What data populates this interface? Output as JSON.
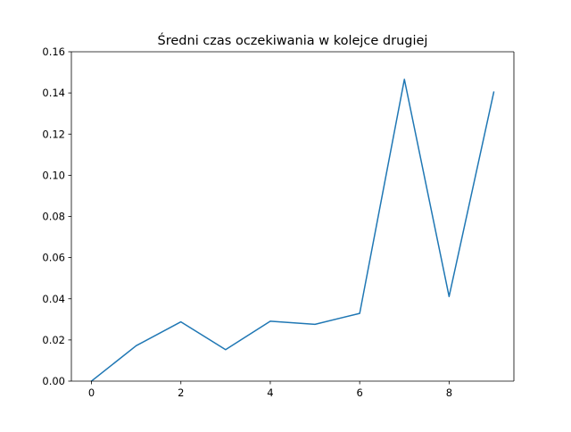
{
  "chart_data": {
    "type": "line",
    "title": "Średni czas oczekiwania w kolejce drugiej",
    "xlabel": "",
    "ylabel": "",
    "x": [
      0,
      1,
      2,
      3,
      4,
      5,
      6,
      7,
      8,
      9
    ],
    "series": [
      {
        "values": [
          0.0,
          0.0172,
          0.0288,
          0.0153,
          0.0291,
          0.0276,
          0.0329,
          0.1466,
          0.0411,
          0.1404
        ],
        "color": "#1f77b4"
      }
    ],
    "xlim": [
      -0.45,
      9.45
    ],
    "ylim": [
      0,
      0.16
    ],
    "xticks": [
      0,
      2,
      4,
      6,
      8
    ],
    "xtick_labels": [
      "0",
      "2",
      "4",
      "6",
      "8"
    ],
    "yticks": [
      0.0,
      0.02,
      0.04,
      0.06,
      0.08,
      0.1,
      0.12,
      0.14,
      0.16
    ],
    "ytick_labels": [
      "0.00",
      "0.02",
      "0.04",
      "0.06",
      "0.08",
      "0.10",
      "0.12",
      "0.14",
      "0.16"
    ],
    "grid": false,
    "legend": "none"
  }
}
